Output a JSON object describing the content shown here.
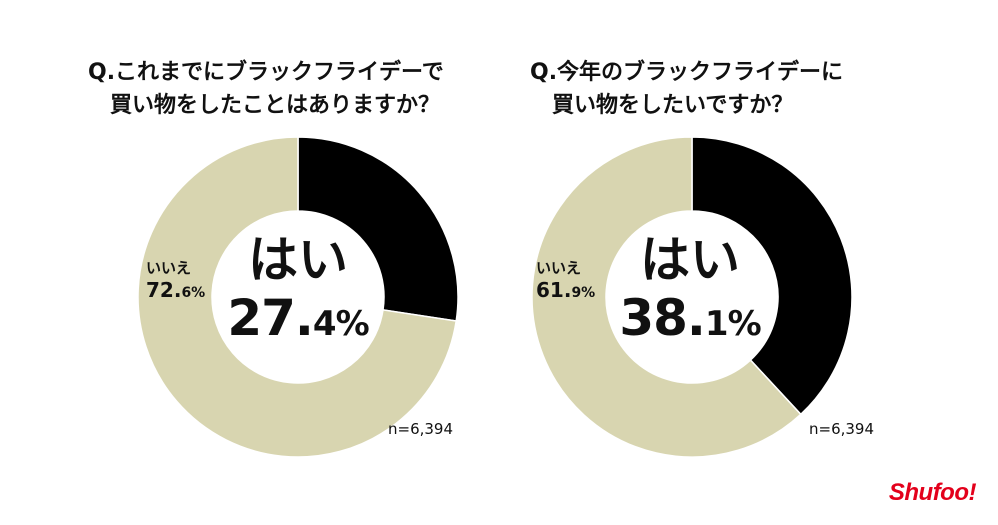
{
  "chart_data": [
    {
      "type": "pie",
      "title": "Q.これまでにブラックフライデーで買い物をしたことはありますか？",
      "title_lines": [
        "Q.これまでにブラックフライデーで",
        "買い物をしたことはありますか？"
      ],
      "categories": [
        "はい",
        "いいえ"
      ],
      "values": [
        27.4,
        72.6
      ],
      "value_labels": {
        "yes_int": "27.",
        "yes_dec": "4%",
        "no_int": "72.",
        "no_dec": "6%"
      },
      "sample": "n=6,394",
      "colors": [
        "#000000",
        "#d8d5b0"
      ]
    },
    {
      "type": "pie",
      "title": "Q.今年のブラックフライデーに買い物をしたいですか？",
      "title_lines": [
        "Q.今年のブラックフライデーに",
        "買い物をしたいですか？"
      ],
      "categories": [
        "はい",
        "いいえ"
      ],
      "values": [
        38.1,
        61.9
      ],
      "value_labels": {
        "yes_int": "38.",
        "yes_dec": "1%",
        "no_int": "61.",
        "no_dec": "9%"
      },
      "sample": "n=6,394",
      "colors": [
        "#000000",
        "#d8d5b0"
      ]
    }
  ],
  "logo": "Shufoo!"
}
